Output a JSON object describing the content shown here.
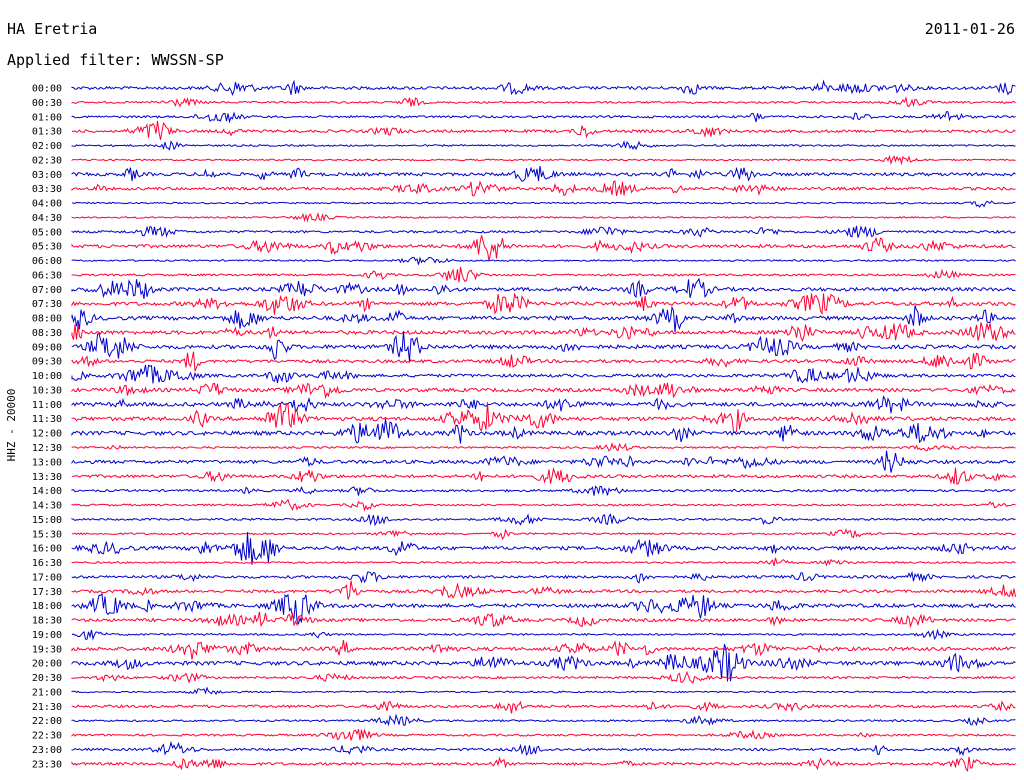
{
  "header": {
    "station": "HA Eretria",
    "filter_label": "Applied filter: WWSSN-SP",
    "date": "2011-01-26"
  },
  "chart_data": {
    "type": "line",
    "title": "HA Eretria",
    "date": "2011-01-26",
    "filter": "Applied filter: WWSSN-SP",
    "ylabel": "HHZ - 20000",
    "series_colors": [
      "#0000cc",
      "#ff0033"
    ],
    "rows": [
      "00:00",
      "00:30",
      "01:00",
      "01:30",
      "02:00",
      "02:30",
      "03:00",
      "03:30",
      "04:00",
      "04:30",
      "05:00",
      "05:30",
      "06:00",
      "06:30",
      "07:00",
      "07:30",
      "08:00",
      "08:30",
      "09:00",
      "09:30",
      "10:00",
      "10:30",
      "11:00",
      "11:30",
      "12:00",
      "12:30",
      "13:00",
      "13:30",
      "14:00",
      "14:30",
      "15:00",
      "15:30",
      "16:00",
      "16:30",
      "17:00",
      "17:30",
      "18:00",
      "18:30",
      "19:00",
      "19:30",
      "20:00",
      "20:30",
      "21:00",
      "21:30",
      "22:00",
      "22:30",
      "23:00",
      "23:30"
    ],
    "activity_level": [
      0.55,
      0.2,
      0.3,
      0.45,
      0.15,
      0.1,
      0.6,
      0.5,
      0.1,
      0.1,
      0.35,
      0.65,
      0.1,
      0.25,
      0.7,
      0.75,
      0.8,
      0.75,
      0.8,
      0.6,
      0.55,
      0.7,
      0.8,
      0.8,
      0.85,
      0.2,
      0.65,
      0.55,
      0.3,
      0.2,
      0.25,
      0.2,
      0.7,
      0.15,
      0.45,
      0.5,
      0.75,
      0.55,
      0.2,
      0.7,
      0.85,
      0.3,
      0.1,
      0.45,
      0.2,
      0.25,
      0.35,
      0.45
    ]
  }
}
